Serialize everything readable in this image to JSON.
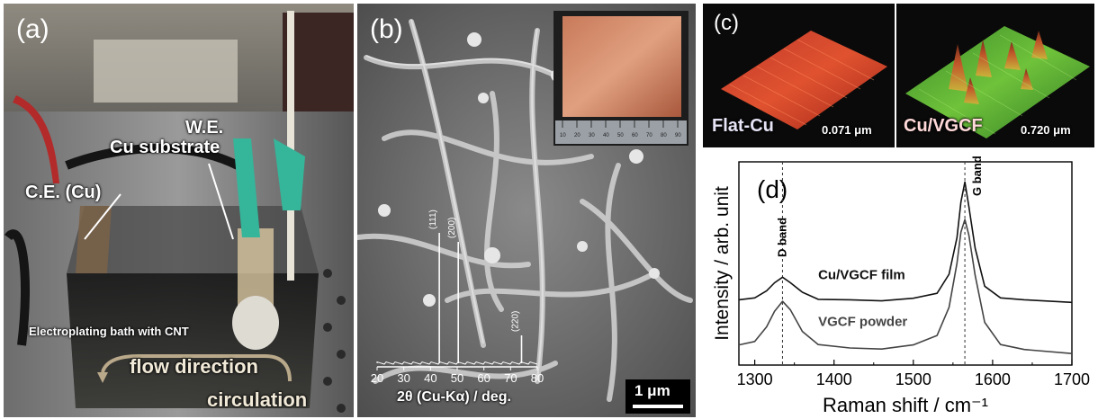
{
  "panel_a": {
    "label": "(a)",
    "we_label": "W.E.",
    "substrate_label": "Cu substrate",
    "ce_label": "C.E. (Cu)",
    "bath_label": "Electroplating bath with CNT",
    "flow_label": "flow direction",
    "circulation_label": "circulation"
  },
  "panel_b": {
    "label": "(b)",
    "xrd_ticks": [
      "20",
      "30",
      "40",
      "50",
      "60",
      "70",
      "80"
    ],
    "xrd_axis_label": "2θ (Cu-Kα) / deg.",
    "xrd_peaks": [
      {
        "label": "(111)",
        "two_theta": 43.3
      },
      {
        "label": "(200)",
        "two_theta": 50.4
      },
      {
        "label": "(220)",
        "two_theta": 74.1
      }
    ],
    "scale_bar": "1 μm",
    "ruler_numbers": [
      "10",
      "20",
      "30",
      "40",
      "50",
      "60",
      "70",
      "80",
      "90"
    ]
  },
  "panel_c": {
    "label": "(c)",
    "flat_title": "Flat-Cu",
    "flat_value": "0.071 μm",
    "vgcf_title": "Cu/VGCF",
    "vgcf_value": "0.720 μm"
  },
  "chart_data": {
    "type": "line",
    "panel_label": "(d)",
    "xlabel": "Raman shift / cm⁻¹",
    "ylabel": "Intensity / arb. unit",
    "xlim": [
      1280,
      1700
    ],
    "xticks": [
      "1300",
      "1400",
      "1500",
      "1600",
      "1700"
    ],
    "annotations": [
      "D band",
      "G band"
    ],
    "d_band_position": 1335,
    "g_band_position": 1565,
    "series": [
      {
        "name": "Cu/VGCF film",
        "x": [
          1280,
          1300,
          1315,
          1325,
          1335,
          1345,
          1360,
          1380,
          1420,
          1460,
          1500,
          1530,
          1545,
          1555,
          1560,
          1565,
          1570,
          1578,
          1590,
          1610,
          1640,
          1700
        ],
        "y": [
          0.43,
          0.45,
          0.49,
          0.55,
          0.58,
          0.55,
          0.48,
          0.44,
          0.43,
          0.43,
          0.44,
          0.48,
          0.6,
          0.85,
          1.08,
          1.22,
          1.05,
          0.78,
          0.52,
          0.45,
          0.43,
          0.42
        ]
      },
      {
        "name": "VGCF powder",
        "x": [
          1280,
          1300,
          1315,
          1325,
          1335,
          1345,
          1360,
          1380,
          1420,
          1460,
          1500,
          1530,
          1545,
          1555,
          1560,
          1565,
          1570,
          1578,
          1590,
          1610,
          1640,
          1700
        ],
        "y": [
          0.13,
          0.16,
          0.25,
          0.36,
          0.42,
          0.37,
          0.22,
          0.14,
          0.11,
          0.11,
          0.13,
          0.2,
          0.38,
          0.68,
          0.88,
          0.97,
          0.86,
          0.6,
          0.28,
          0.14,
          0.1,
          0.08
        ]
      }
    ]
  }
}
